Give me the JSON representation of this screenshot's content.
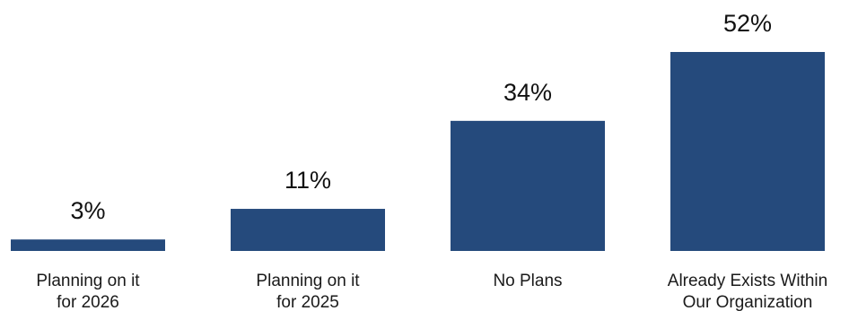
{
  "chart_data": {
    "type": "bar",
    "categories": [
      [
        "Planning on it",
        "for 2026"
      ],
      [
        "Planning on it",
        "for 2025"
      ],
      [
        "No Plans"
      ],
      [
        "Already Exists Within",
        "Our Organization"
      ]
    ],
    "values": [
      3,
      11,
      34,
      52
    ],
    "data_labels": [
      "3%",
      "11%",
      "34%",
      "52%"
    ],
    "title": "",
    "xlabel": "",
    "ylabel": "",
    "ylim": [
      0,
      52
    ],
    "grid": false,
    "legend": "none",
    "bar_color": "#254a7c"
  }
}
